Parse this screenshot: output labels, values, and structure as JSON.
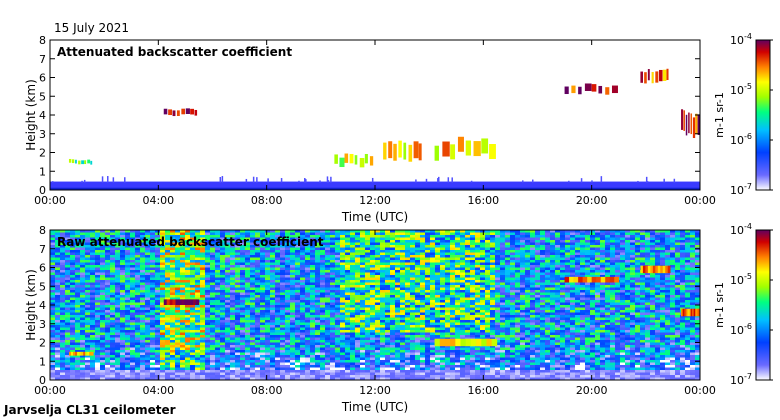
{
  "date_label": "15 July 2021",
  "footer_label": "Jarvselja CL31 ceilometer",
  "chart_data": [
    {
      "type": "heatmap",
      "title": "Attenuated backscatter coefficient",
      "xlabel": "Time (UTC)",
      "ylabel": "Height (km)",
      "x_ticks": [
        "00:00",
        "04:00",
        "08:00",
        "12:00",
        "16:00",
        "20:00",
        "00:00"
      ],
      "x_tick_hours": [
        0,
        4,
        8,
        12,
        16,
        20,
        24
      ],
      "y_ticks": [
        0,
        1,
        2,
        3,
        4,
        5,
        6,
        7,
        8
      ],
      "xlim": [
        0,
        24
      ],
      "ylim": [
        0,
        8
      ],
      "colorbar": {
        "scale": "log",
        "range": [
          1e-07,
          0.0001
        ],
        "tick_labels": [
          "10-7",
          "10-6",
          "10-5",
          "10-4"
        ],
        "tick_values": [
          1e-07,
          1e-06,
          1e-05,
          0.0001
        ],
        "unit_label": "m-1 sr-1"
      },
      "features": [
        {
          "name": "boundary-layer",
          "x_start": 0,
          "x_end": 24,
          "y_bottom": 0.0,
          "y_top": 0.45,
          "level": 2e-07
        },
        {
          "name": "cloud-morning-low",
          "x_start": 0.7,
          "x_end": 1.6,
          "y_bottom": 1.4,
          "y_top": 1.6,
          "level": 3e-06
        },
        {
          "name": "cloud-4km",
          "x_start": 4.2,
          "x_end": 5.5,
          "y_bottom": 4.0,
          "y_top": 4.3,
          "level": 8e-05
        },
        {
          "name": "cloud-noon-1",
          "x_start": 10.5,
          "x_end": 12.0,
          "y_bottom": 1.3,
          "y_top": 1.8,
          "level": 1e-05
        },
        {
          "name": "cloud-noon-2",
          "x_start": 12.3,
          "x_end": 13.8,
          "y_bottom": 1.5,
          "y_top": 2.4,
          "level": 1.5e-05
        },
        {
          "name": "cloud-afternoon",
          "x_start": 14.2,
          "x_end": 16.5,
          "y_bottom": 1.8,
          "y_top": 2.6,
          "level": 2e-05
        },
        {
          "name": "cloud-evening-5km",
          "x_start": 19.0,
          "x_end": 21.0,
          "y_bottom": 5.2,
          "y_top": 5.6,
          "level": 7e-05
        },
        {
          "name": "cloud-night-6km",
          "x_start": 21.8,
          "x_end": 22.9,
          "y_bottom": 5.8,
          "y_top": 6.4,
          "level": 5e-05
        },
        {
          "name": "cloud-midnight-3km",
          "x_start": 23.3,
          "x_end": 24.0,
          "y_bottom": 3.0,
          "y_top": 4.1,
          "level": 6e-05
        }
      ]
    },
    {
      "type": "heatmap",
      "title": "Raw attenuated backscatter coefficient",
      "xlabel": "Time (UTC)",
      "ylabel": "Height (km)",
      "x_ticks": [
        "00:00",
        "04:00",
        "08:00",
        "12:00",
        "16:00",
        "20:00",
        "00:00"
      ],
      "x_tick_hours": [
        0,
        4,
        8,
        12,
        16,
        20,
        24
      ],
      "y_ticks": [
        0,
        1,
        2,
        3,
        4,
        5,
        6,
        7,
        8
      ],
      "xlim": [
        0,
        24
      ],
      "ylim": [
        0,
        8
      ],
      "colorbar": {
        "scale": "log",
        "range": [
          1e-07,
          0.0001
        ],
        "tick_labels": [
          "10-7",
          "10-6",
          "10-5",
          "10-4"
        ],
        "tick_values": [
          1e-07,
          1e-06,
          1e-05,
          0.0001
        ],
        "unit_label": "m-1 sr-1"
      },
      "noise_regions": [
        {
          "x_start": 0,
          "x_end": 24,
          "y_bottom": 0,
          "y_top": 8,
          "level": 1e-06
        },
        {
          "x_start": 4.0,
          "x_end": 5.8,
          "y_bottom": 0,
          "y_top": 8,
          "level": 6e-06
        },
        {
          "x_start": 10.8,
          "x_end": 16.5,
          "y_bottom": 2.5,
          "y_top": 8,
          "level": 3e-06
        }
      ],
      "layers": [
        {
          "x_start": 4.2,
          "x_end": 5.5,
          "y_bottom": 4.0,
          "y_top": 4.3,
          "level": 8e-05
        },
        {
          "x_start": 0.7,
          "x_end": 1.6,
          "y_bottom": 1.3,
          "y_top": 1.5,
          "level": 2e-05
        },
        {
          "x_start": 19.0,
          "x_end": 21.0,
          "y_bottom": 5.2,
          "y_top": 5.5,
          "level": 3e-05
        },
        {
          "x_start": 21.8,
          "x_end": 22.9,
          "y_bottom": 5.7,
          "y_top": 6.1,
          "level": 3e-05
        },
        {
          "x_start": 23.3,
          "x_end": 24.0,
          "y_bottom": 3.4,
          "y_top": 3.8,
          "level": 3e-05
        },
        {
          "x_start": 14.2,
          "x_end": 16.5,
          "y_bottom": 1.8,
          "y_top": 2.2,
          "level": 1.5e-05
        }
      ]
    }
  ]
}
